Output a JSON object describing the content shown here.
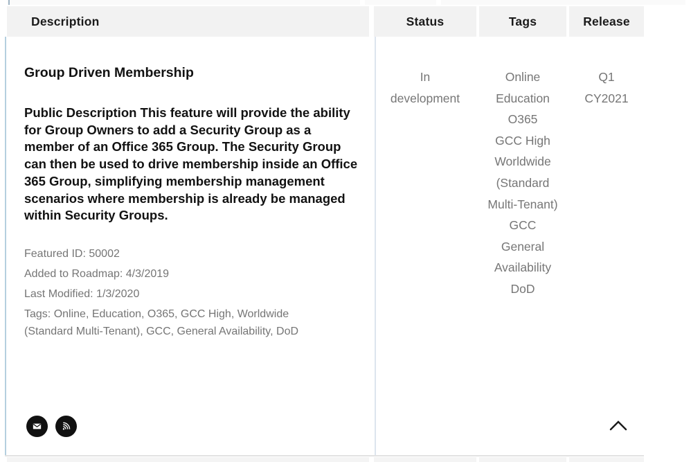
{
  "header": {
    "columns": [
      {
        "label": "Description"
      },
      {
        "label": "Status"
      },
      {
        "label": "Tags"
      },
      {
        "label": "Release"
      }
    ]
  },
  "feature": {
    "title": "Group Driven Membership",
    "public_description": "Public Description This feature will provide the ability for Group Owners to add a Security Group as a member of an Office 365 Group. The Security Group can then be used to drive membership inside an Office 365 Group, simplifying membership management scenarios where membership is already be managed within Security Groups.",
    "featured_id_line": "Featured ID: 50002",
    "added_line": "Added to Roadmap: 4/3/2019",
    "modified_line": "Last Modified: 1/3/2020",
    "tags_meta_line": "Tags: Online, Education, O365, GCC High, Worldwide (Standard Multi-Tenant), GCC, General Availability, DoD",
    "status": "In development",
    "tags": [
      "Online",
      "Education",
      "O365",
      "GCC High",
      "Worldwide (Standard Multi-Tenant)",
      "GCC",
      "General Availability",
      "DoD"
    ],
    "release": "Q1 CY2021"
  },
  "icons": {
    "email": "email-icon",
    "rss": "rss-icon",
    "collapse": "chevron-up-icon"
  },
  "colors": {
    "header_bg": "#f2f2f2",
    "header_text": "#1b1b1b",
    "body_text": "#121212",
    "muted_text": "#767676",
    "card_accent_border": "#b4cfdf",
    "column_divider": "#dde5ee",
    "icon_button_bg": "#111111"
  }
}
